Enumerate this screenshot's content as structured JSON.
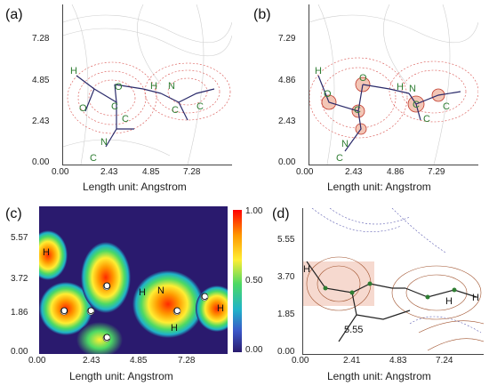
{
  "panels": [
    {
      "id": "a",
      "label": "(a)",
      "xticks": [
        "0.00",
        "2.43",
        "4.85",
        "7.28"
      ],
      "yticks": [
        "0.00",
        "2.43",
        "4.85",
        "7.28"
      ],
      "xlabel": "Length unit: Angstrom",
      "atoms": [
        "H",
        "O",
        "O",
        "C",
        "H",
        "N",
        "C",
        "N",
        "C",
        "C",
        "C"
      ]
    },
    {
      "id": "b",
      "label": "(b)",
      "xticks": [
        "0.00",
        "2.43",
        "4.86",
        "7.29"
      ],
      "yticks": [
        "0.00",
        "2.43",
        "4.86",
        "7.29"
      ],
      "xlabel": "Length unit: Angstrom",
      "atoms": [
        "H",
        "O",
        "O",
        "C",
        "H",
        "N",
        "C",
        "C",
        "N",
        "C",
        "C"
      ]
    },
    {
      "id": "c",
      "label": "(c)",
      "xticks": [
        "0.00",
        "2.43",
        "4.85",
        "7.28"
      ],
      "yticks": [
        "0.00",
        "1.86",
        "3.72",
        "5.57"
      ],
      "xlabel": "Length unit: Angstrom",
      "colorbar_ticks": [
        "1.00",
        "0.50",
        "0.00"
      ],
      "atoms": [
        "H",
        "O",
        "C",
        "O",
        "C",
        "H",
        "N",
        "C",
        "C",
        "H",
        "H"
      ]
    },
    {
      "id": "d",
      "label": "(d)",
      "xticks": [
        "0.00",
        "2.41",
        "4.83",
        "7.24"
      ],
      "yticks": [
        "0.00",
        "1.85",
        "3.70",
        "5.55"
      ],
      "xlabel": "Length unit: Angstrom",
      "annotation": "5.55",
      "atoms": [
        "H",
        "H",
        "H"
      ]
    }
  ],
  "colors": {
    "contour_red": "#d9534f",
    "contour_blue": "#5a5ab0",
    "bond": "#2a2a6a",
    "atom_label_green": "#2e7d32",
    "elf_background": "#2a1a6e"
  }
}
